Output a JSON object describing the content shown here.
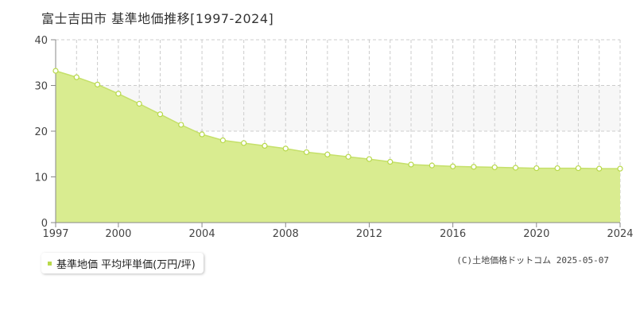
{
  "header": {
    "title": "富士吉田市 基準地価推移[1997-2024]"
  },
  "legend": {
    "label": "基準地価 平均坪単価(万円/坪)"
  },
  "footer": {
    "copyright": "(C)土地価格ドットコム 2025-05-07"
  },
  "colors": {
    "fill": "#d9ec90",
    "line": "#c5e06a",
    "marker": "#b8d94a",
    "band": "#f7f7f7",
    "grid": "#cccccc",
    "axis": "#888888"
  },
  "chart_data": {
    "type": "area",
    "title": "富士吉田市 基準地価推移[1997-2024]",
    "x": [
      1997,
      1998,
      1999,
      2000,
      2001,
      2002,
      2003,
      2004,
      2005,
      2006,
      2007,
      2008,
      2009,
      2010,
      2011,
      2012,
      2013,
      2014,
      2015,
      2016,
      2017,
      2018,
      2019,
      2020,
      2021,
      2022,
      2023,
      2024
    ],
    "series": [
      {
        "name": "基準地価 平均坪単価(万円/坪)",
        "values": [
          33.2,
          31.8,
          30.2,
          28.2,
          26.0,
          23.7,
          21.4,
          19.3,
          18.0,
          17.4,
          16.8,
          16.2,
          15.4,
          14.9,
          14.4,
          13.9,
          13.3,
          12.7,
          12.5,
          12.3,
          12.2,
          12.1,
          12.0,
          11.9,
          11.9,
          11.9,
          11.8,
          11.8
        ]
      }
    ],
    "xticks": [
      "1997",
      "2000",
      "2004",
      "2008",
      "2012",
      "2016",
      "2020",
      "2024"
    ],
    "yticks": [
      "0",
      "10",
      "20",
      "30",
      "40"
    ],
    "xlim": [
      1997,
      2024
    ],
    "ylim": [
      0,
      40
    ],
    "grid": true,
    "legend_position": "bottom-left"
  }
}
